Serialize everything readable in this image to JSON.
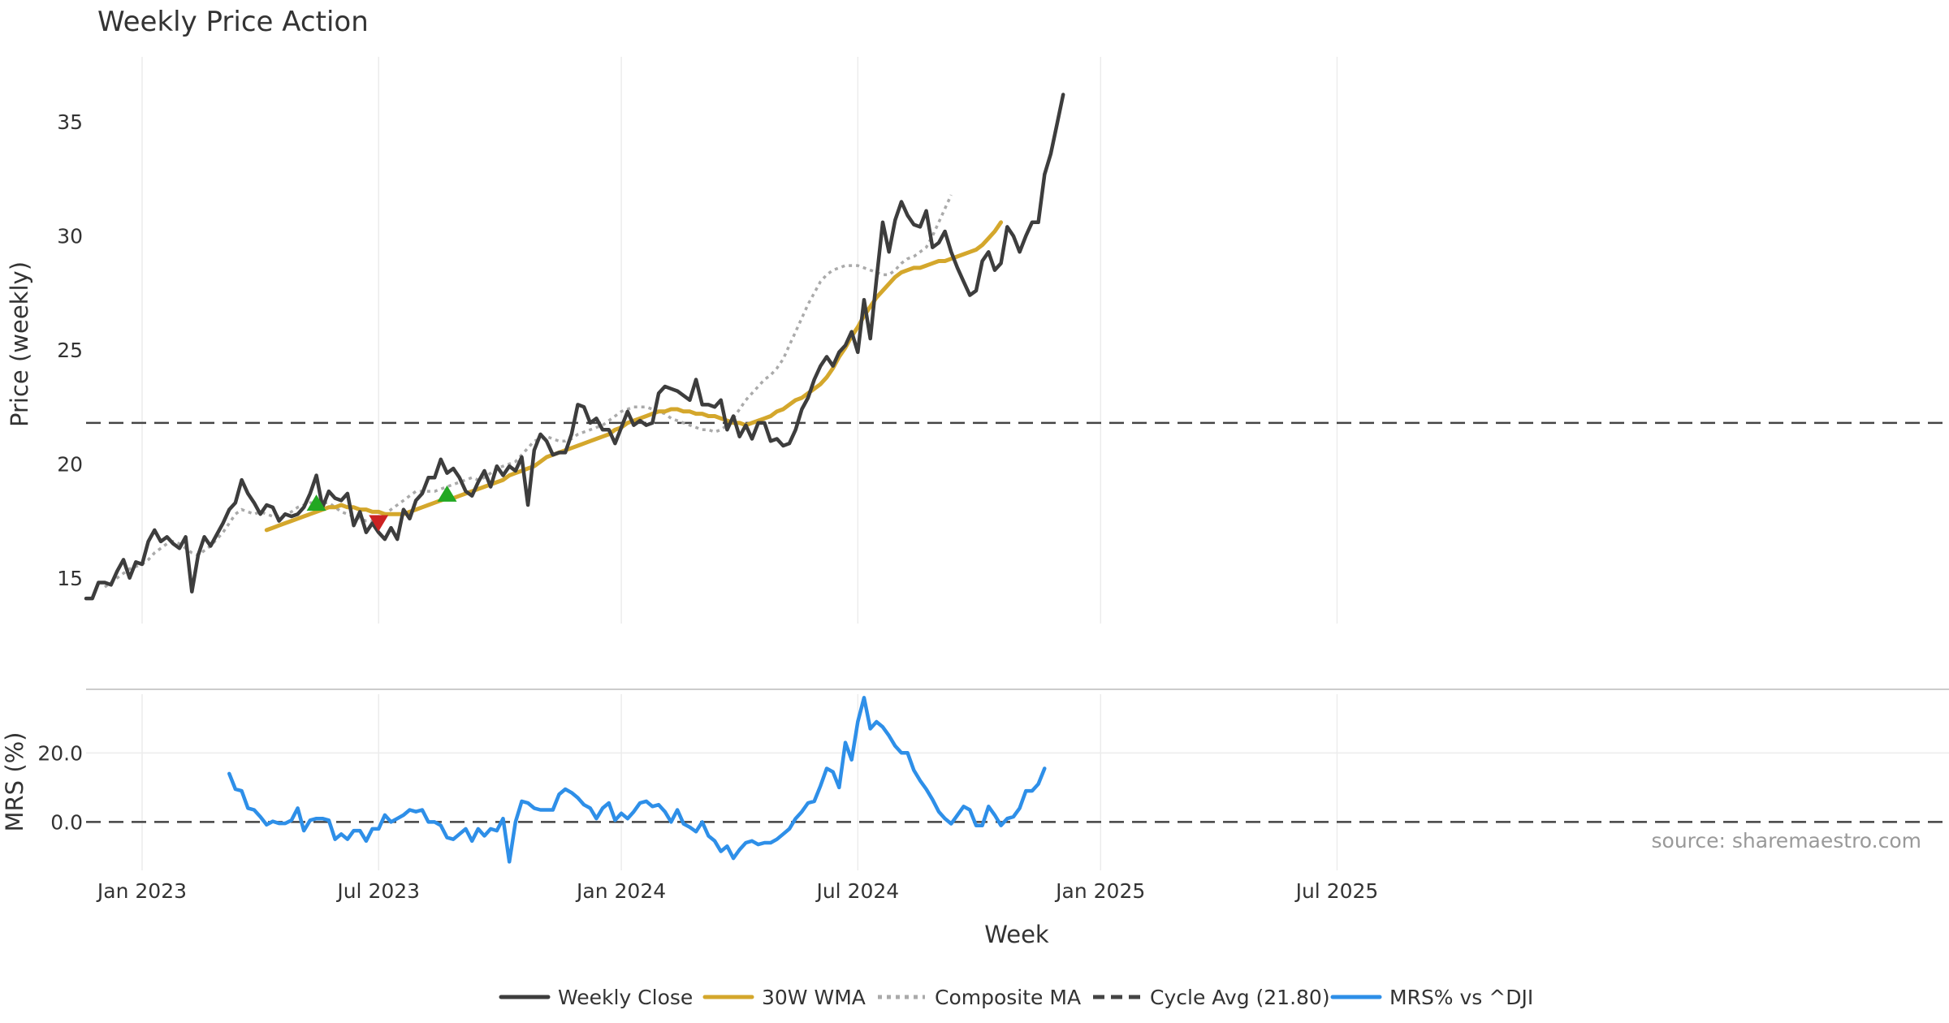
{
  "chart_data": {
    "type": "line",
    "title": "Weekly Price Action",
    "xlabel": "Week",
    "x_ticks": [
      "Jan 2023",
      "Jul 2023",
      "Jan 2024",
      "Jul 2024",
      "Jan 2025",
      "Jul 2025"
    ],
    "price_panel": {
      "ylabel": "Price (weekly)",
      "ylim": [
        13,
        37.5
      ],
      "y_ticks": [
        "15",
        "20",
        "25",
        "30",
        "35"
      ],
      "series": [
        {
          "name": "Weekly Close",
          "color": "#3d3d3d",
          "style": "solid",
          "values": [
            14.1,
            14.1,
            14.8,
            14.8,
            14.7,
            15.3,
            15.8,
            15.0,
            15.7,
            15.6,
            16.6,
            17.1,
            16.6,
            16.8,
            16.5,
            16.3,
            16.8,
            14.4,
            16.0,
            16.8,
            16.4,
            16.9,
            17.4,
            18.0,
            18.3,
            19.3,
            18.7,
            18.3,
            17.8,
            18.2,
            18.1,
            17.5,
            17.8,
            17.7,
            17.8,
            18.1,
            18.7,
            19.5,
            18.1,
            18.8,
            18.5,
            18.4,
            18.7,
            17.3,
            17.9,
            17.0,
            17.4,
            17.0,
            16.7,
            17.2,
            16.7,
            18.0,
            17.6,
            18.4,
            18.7,
            19.4,
            19.4,
            20.2,
            19.6,
            19.8,
            19.4,
            18.8,
            18.6,
            19.2,
            19.7,
            19.0,
            19.9,
            19.5,
            19.9,
            19.7,
            20.3,
            18.2,
            20.6,
            21.3,
            21.0,
            20.4,
            20.5,
            20.5,
            21.3,
            22.6,
            22.5,
            21.8,
            22.0,
            21.5,
            21.5,
            20.9,
            21.6,
            22.3,
            21.7,
            21.9,
            21.7,
            21.8,
            23.1,
            23.4,
            23.3,
            23.2,
            23.0,
            22.8,
            23.7,
            22.6,
            22.6,
            22.5,
            22.8,
            21.5,
            22.1,
            21.2,
            21.7,
            21.1,
            21.8,
            21.8,
            21.0,
            21.1,
            20.8,
            20.9,
            21.5,
            22.4,
            22.9,
            23.7,
            24.3,
            24.7,
            24.3,
            24.9,
            25.2,
            25.8,
            24.9,
            27.2,
            25.5,
            28.1,
            30.6,
            29.3,
            30.7,
            31.5,
            30.9,
            30.5,
            30.4,
            31.1,
            29.5,
            29.7,
            30.2,
            29.3,
            28.6,
            28.0,
            27.4,
            27.6,
            28.9,
            29.3,
            28.5,
            28.8,
            30.4,
            30.0,
            29.3,
            30.0,
            30.6,
            30.6,
            32.7,
            33.6,
            34.9,
            36.2
          ]
        },
        {
          "name": "30W WMA",
          "color": "#d4a72c",
          "style": "solid",
          "start_index": 29,
          "values": [
            17.1,
            17.2,
            17.3,
            17.4,
            17.5,
            17.6,
            17.7,
            17.8,
            17.9,
            18.0,
            18.1,
            18.1,
            18.2,
            18.1,
            18.1,
            18.0,
            18.0,
            17.9,
            17.9,
            17.8,
            17.8,
            17.8,
            17.8,
            17.9,
            18.0,
            18.1,
            18.2,
            18.3,
            18.4,
            18.5,
            18.5,
            18.6,
            18.7,
            18.8,
            18.9,
            19.0,
            19.1,
            19.2,
            19.3,
            19.5,
            19.6,
            19.7,
            19.8,
            19.9,
            20.1,
            20.3,
            20.4,
            20.5,
            20.6,
            20.7,
            20.8,
            20.9,
            21.0,
            21.1,
            21.2,
            21.3,
            21.5,
            21.6,
            21.8,
            21.9,
            22.0,
            22.1,
            22.2,
            22.3,
            22.3,
            22.4,
            22.4,
            22.3,
            22.3,
            22.2,
            22.2,
            22.1,
            22.1,
            22.0,
            21.9,
            21.8,
            21.8,
            21.7,
            21.8,
            21.9,
            22.0,
            22.1,
            22.3,
            22.4,
            22.6,
            22.8,
            22.9,
            23.1,
            23.3,
            23.5,
            23.8,
            24.2,
            24.7,
            25.1,
            25.6,
            26.0,
            26.5,
            26.9,
            27.3,
            27.6,
            27.9,
            28.2,
            28.4,
            28.5,
            28.6,
            28.6,
            28.7,
            28.8,
            28.9,
            28.9,
            29.0,
            29.1,
            29.2,
            29.3,
            29.4,
            29.6,
            29.9,
            30.2,
            30.6
          ]
        },
        {
          "name": "Composite MA",
          "color": "#aaaaaa",
          "style": "dotted",
          "start_index": 3,
          "values": [
            14.6,
            14.8,
            15.0,
            15.2,
            15.4,
            15.5,
            15.6,
            15.8,
            16.1,
            16.3,
            16.5,
            16.6,
            16.5,
            16.3,
            16.1,
            16.0,
            16.2,
            16.4,
            16.7,
            17.0,
            17.4,
            17.8,
            18.0,
            17.9,
            17.8,
            17.9,
            17.8,
            17.7,
            17.7,
            17.8,
            17.9,
            18.1,
            18.2,
            18.3,
            18.3,
            18.3,
            18.3,
            18.1,
            17.9,
            17.8,
            17.7,
            17.6,
            17.5,
            17.5,
            17.6,
            17.8,
            18.0,
            18.2,
            18.4,
            18.6,
            18.8,
            18.8,
            18.8,
            18.8,
            18.9,
            19.0,
            19.1,
            19.2,
            19.3,
            19.4,
            19.3,
            19.4,
            19.6,
            19.8,
            19.9,
            20.0,
            20.1,
            20.4,
            20.7,
            21.0,
            21.1,
            21.2,
            21.1,
            21.0,
            21.0,
            21.1,
            21.3,
            21.4,
            21.5,
            21.6,
            21.7,
            21.9,
            22.1,
            22.3,
            22.4,
            22.5,
            22.5,
            22.5,
            22.4,
            22.3,
            22.2,
            22.0,
            21.9,
            21.8,
            21.7,
            21.6,
            21.5,
            21.5,
            21.4,
            21.5,
            21.7,
            22.0,
            22.4,
            22.8,
            23.1,
            23.4,
            23.7,
            23.9,
            24.2,
            24.6,
            25.2,
            25.8,
            26.4,
            27.0,
            27.5,
            28.0,
            28.3,
            28.5,
            28.6,
            28.7,
            28.7,
            28.7,
            28.6,
            28.5,
            28.4,
            28.3,
            28.3,
            28.5,
            28.8,
            29.0,
            29.1,
            29.3,
            29.5,
            30.0,
            30.6,
            31.2,
            31.8
          ]
        },
        {
          "name": "Cycle Avg (21.80)",
          "color": "#444444",
          "style": "dashed",
          "value": 21.8
        }
      ],
      "signals": [
        {
          "type": "buy",
          "index": 37,
          "value": 18.3,
          "color": "#22a822"
        },
        {
          "type": "sell",
          "index": 47,
          "value": 17.4,
          "color": "#cc2222"
        },
        {
          "type": "buy",
          "index": 58,
          "value": 18.7,
          "color": "#22a822"
        }
      ]
    },
    "mrs_panel": {
      "ylabel": "MRS (%)",
      "ylim": [
        -14,
        37
      ],
      "y_ticks": [
        "0.0",
        "20.0"
      ],
      "series": [
        {
          "name": "MRS% vs ^DJI",
          "color": "#2e8fe8",
          "style": "solid",
          "start_index": 23,
          "values": [
            14,
            9.5,
            9,
            4,
            3.5,
            1.5,
            -0.8,
            0.2,
            -0.4,
            -0.4,
            0.5,
            4,
            -2.5,
            0.5,
            1,
            1,
            0.5,
            -5,
            -3.5,
            -5,
            -2.5,
            -2.5,
            -5.5,
            -2,
            -2,
            2,
            0,
            1,
            2,
            3.5,
            3,
            3.5,
            0,
            0,
            -1,
            -4.5,
            -5,
            -3.5,
            -2,
            -5.5,
            -2,
            -4,
            -2,
            -2.5,
            1,
            -11.5,
            0,
            6,
            5.5,
            4,
            3.5,
            3.5,
            3.5,
            8,
            9.5,
            8.5,
            7,
            5,
            4,
            1,
            4,
            5.5,
            0.5,
            2.5,
            1,
            3,
            5.5,
            6,
            4.5,
            5,
            3,
            0,
            3.5,
            -0.5,
            -1.5,
            -2.8,
            0,
            -4,
            -5.5,
            -8.5,
            -7,
            -10.5,
            -8,
            -6,
            -5.5,
            -6.5,
            -6,
            -6,
            -5,
            -3.5,
            -2,
            1,
            3,
            5.5,
            6,
            10.5,
            15.5,
            14.5,
            10,
            23,
            18,
            29,
            36,
            27,
            29,
            27.5,
            25,
            22,
            20,
            20,
            15,
            12,
            9.5,
            6.5,
            3,
            1,
            -0.5,
            2,
            4.5,
            3.5,
            -1,
            -1,
            4.5,
            2,
            -1,
            1,
            1.5,
            4,
            9,
            9,
            11,
            15.5
          ]
        },
        {
          "name": "zero-line",
          "color": "#444444",
          "style": "dashed",
          "value": 0
        }
      ]
    },
    "legend": [
      "Weekly Close",
      "30W WMA",
      "Composite MA",
      "Cycle Avg (21.80)",
      "MRS% vs ^DJI"
    ],
    "legend_placement": "bottom-center",
    "annotation": "source: sharemaestro.com",
    "grid": "vertical"
  }
}
